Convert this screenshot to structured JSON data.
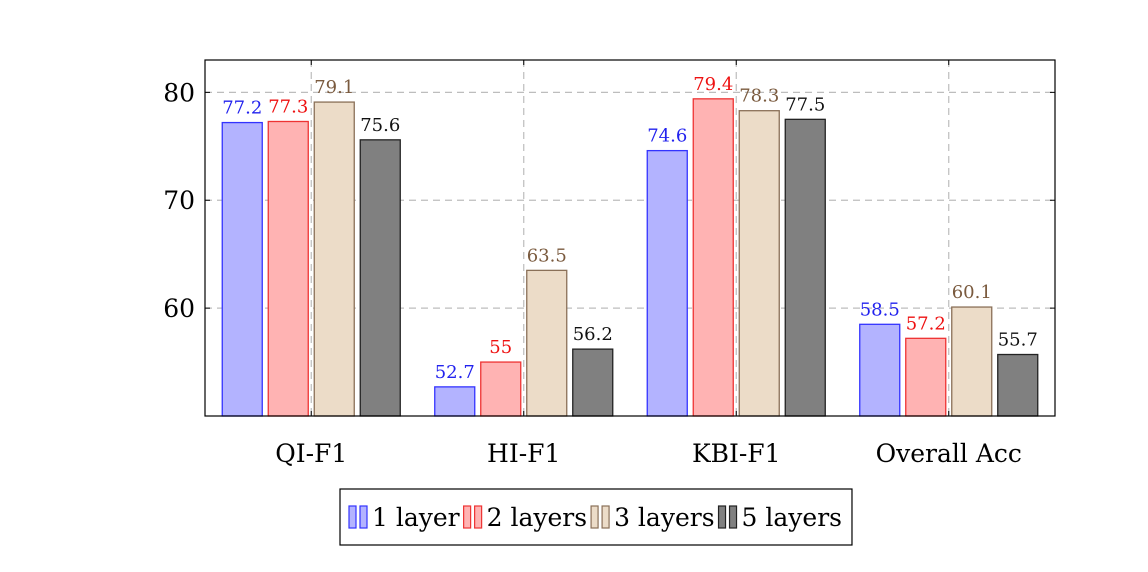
{
  "chart_data": {
    "type": "bar",
    "title": "",
    "xlabel": "",
    "ylabel": "",
    "categories": [
      "QI-F1",
      "HI-F1",
      "KBI-F1",
      "Overall Acc"
    ],
    "ylim": [
      50,
      83
    ],
    "yticks": [
      60,
      70,
      80
    ],
    "grid": true,
    "legend_position": "bottom",
    "series": [
      {
        "name": "1 layer",
        "values": [
          77.2,
          52.7,
          74.6,
          58.5
        ],
        "labels": [
          "77.2",
          "52.7",
          "74.6",
          "58.5"
        ],
        "fill": "#b3b3ff",
        "stroke": "#3333ff",
        "label_color": "#2222ee"
      },
      {
        "name": "2 layers",
        "values": [
          77.3,
          55,
          79.4,
          57.2
        ],
        "labels": [
          "77.3",
          "55",
          "79.4",
          "57.2"
        ],
        "fill": "#ffb3b3",
        "stroke": "#ee3333",
        "label_color": "#ee1111"
      },
      {
        "name": "3 layers",
        "values": [
          79.1,
          63.5,
          78.3,
          60.1
        ],
        "labels": [
          "79.1",
          "63.5",
          "78.3",
          "60.1"
        ],
        "fill": "#ecdcc8",
        "stroke": "#8a7058",
        "label_color": "#7a5a3e"
      },
      {
        "name": "5 layers",
        "values": [
          75.6,
          56.2,
          77.5,
          55.7
        ],
        "labels": [
          "75.6",
          "56.2",
          "77.5",
          "55.7"
        ],
        "fill": "#808080",
        "stroke": "#222222",
        "label_color": "#111111"
      }
    ]
  }
}
